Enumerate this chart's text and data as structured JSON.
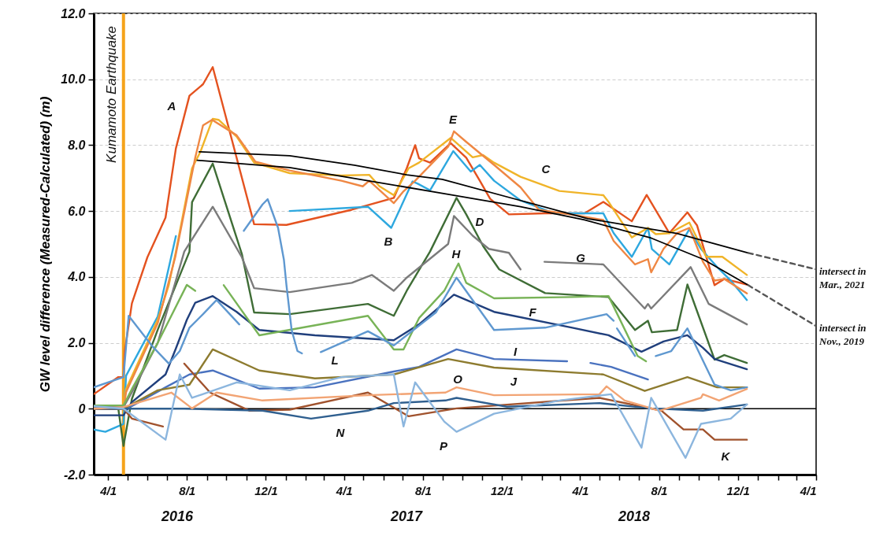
{
  "chart_data": {
    "type": "line",
    "ylabel": "GW level difference (Measured-Calculated) (m)",
    "xlim": [
      "2016-03-10",
      "2019-04-01"
    ],
    "ylim": [
      -2,
      12
    ],
    "yticks": [
      {
        "value": -2,
        "label": "-2.0"
      },
      0,
      {
        "value": 2,
        "label": "2.0"
      },
      {
        "value": 4,
        "label": "4.0"
      },
      {
        "value": 6,
        "label": "6.0"
      },
      {
        "value": 8,
        "label": "8.0"
      },
      {
        "value": 10,
        "label": "10.0"
      },
      {
        "value": 12,
        "label": "12.0"
      }
    ],
    "xticks": [
      {
        "value": "2016-04-01",
        "label": "4/1"
      },
      {
        "value": "2016-05-01",
        "label": null
      },
      {
        "value": "2016-06-01",
        "label": null
      },
      {
        "value": "2016-07-01",
        "label": null
      },
      {
        "value": "2016-08-01",
        "label": "8/1"
      },
      {
        "value": "2016-09-01",
        "label": null
      },
      {
        "value": "2016-10-01",
        "label": null
      },
      {
        "value": "2016-11-01",
        "label": null
      },
      {
        "value": "2016-12-01",
        "label": "12/1"
      },
      {
        "value": "2017-01-01",
        "label": null
      },
      {
        "value": "2017-02-01",
        "label": null
      },
      {
        "value": "2017-03-01",
        "label": null
      },
      {
        "value": "2017-04-01",
        "label": "4/1"
      },
      {
        "value": "2017-05-01",
        "label": null
      },
      {
        "value": "2017-06-01",
        "label": null
      },
      {
        "value": "2017-07-01",
        "label": null
      },
      {
        "value": "2017-08-01",
        "label": "8/1"
      },
      {
        "value": "2017-09-01",
        "label": null
      },
      {
        "value": "2017-10-01",
        "label": null
      },
      {
        "value": "2017-11-01",
        "label": null
      },
      {
        "value": "2017-12-01",
        "label": "12/1"
      },
      {
        "value": "2018-01-01",
        "label": null
      },
      {
        "value": "2018-02-01",
        "label": null
      },
      {
        "value": "2018-03-01",
        "label": null
      },
      {
        "value": "2018-04-01",
        "label": "4/1"
      },
      {
        "value": "2018-05-01",
        "label": null
      },
      {
        "value": "2018-06-01",
        "label": null
      },
      {
        "value": "2018-07-01",
        "label": null
      },
      {
        "value": "2018-08-01",
        "label": "8/1"
      },
      {
        "value": "2018-09-01",
        "label": null
      },
      {
        "value": "2018-10-01",
        "label": null
      },
      {
        "value": "2018-11-01",
        "label": null
      },
      {
        "value": "2018-12-01",
        "label": "12/1"
      },
      {
        "value": "2019-01-01",
        "label": null
      },
      {
        "value": "2019-02-01",
        "label": null
      },
      {
        "value": "2019-03-01",
        "label": null
      },
      {
        "value": "2019-04-01",
        "label": "4/1"
      }
    ],
    "grid": "y",
    "ref_lines": [
      {
        "axis": "y",
        "value": 0,
        "color": "#000000"
      },
      {
        "axis": "x",
        "value": "2016-04-25",
        "label": "Kumamoto Earthquake",
        "color": "#f5a31a"
      }
    ],
    "series": [
      {
        "color": "#e4521f",
        "x": [
          "2016-03-10",
          "2016-04-17",
          "2016-04-25",
          "2016-04-27",
          "2016-05-08",
          "2016-06-01",
          "2016-06-29",
          "2016-07-15",
          "2016-08-05",
          "2016-08-26",
          "2016-09-10",
          "2016-11-13",
          "2017-01-02",
          "2017-04-13",
          "2017-06-17",
          "2017-07-07",
          "2017-07-20",
          "2017-07-26",
          "2017-08-12",
          "2017-09-13",
          "2017-10-07",
          "2017-10-28",
          "2017-11-13",
          "2017-12-12",
          "2018-02-06",
          "2018-04-08",
          "2018-05-07",
          "2018-06-20",
          "2018-07-13",
          "2018-08-17",
          "2018-09-14",
          "2018-09-29",
          "2018-10-26",
          "2018-11-10",
          "2018-12-15"
        ],
        "values": [
          0.44,
          0.96,
          0.96,
          1.75,
          3.2,
          4.6,
          5.8,
          7.9,
          9.5,
          9.85,
          10.37,
          5.6,
          5.58,
          6.04,
          6.4,
          7.3,
          8.0,
          7.6,
          7.47,
          8.06,
          7.62,
          6.92,
          6.37,
          5.9,
          5.93,
          5.93,
          6.28,
          5.69,
          6.49,
          5.33,
          5.96,
          5.56,
          3.75,
          3.94,
          3.77
        ]
      },
      {
        "color": "#2ea8df",
        "x": [
          "2016-03-10",
          "2016-03-28",
          "2016-04-25",
          "2016-04-29",
          "2016-06-17",
          "2016-07-15",
          "2016-08-09",
          "2016-10-17",
          "2017-01-07",
          "2017-05-08",
          "2017-06-13",
          "2017-06-26",
          "2017-07-16",
          "2017-07-24",
          "2017-08-12",
          "2017-09-17",
          "2017-10-14",
          "2017-10-28",
          "2017-11-19",
          "2017-12-30",
          "2018-02-20",
          "2018-05-07",
          "2018-05-23",
          "2018-06-20",
          "2018-07-15",
          "2018-07-21",
          "2018-08-17",
          "2018-09-17",
          "2018-10-05",
          "2018-10-30",
          "2018-11-20",
          "2018-12-15"
        ],
        "values": [
          -0.63,
          -0.7,
          -0.46,
          1.0,
          2.8,
          5.24,
          null,
          null,
          6.0,
          6.13,
          5.49,
          6.04,
          6.9,
          6.83,
          6.63,
          7.82,
          7.2,
          7.4,
          6.92,
          6.32,
          5.93,
          5.93,
          5.33,
          4.61,
          5.49,
          4.85,
          4.38,
          5.45,
          4.85,
          4.3,
          3.89,
          3.3
        ]
      },
      {
        "color": "#f0b429",
        "x": [
          "2016-03-10",
          "2016-04-25",
          "2016-04-29",
          "2016-06-17",
          "2016-07-04",
          "2016-07-15",
          "2016-08-09",
          "2016-08-22",
          "2016-09-10",
          "2016-09-19",
          "2016-10-17",
          "2016-11-13",
          "2017-01-07",
          "2017-03-28",
          "2017-05-10",
          "2017-05-26",
          "2017-06-17",
          "2017-07-10",
          "2017-07-26",
          "2017-09-13",
          "2017-10-17",
          "2017-11-02",
          "2017-11-19",
          "2017-12-30",
          "2018-02-28",
          "2018-05-07",
          "2018-05-15",
          "2018-06-20",
          "2018-07-15",
          "2018-07-27",
          "2018-08-17",
          "2018-09-17",
          "2018-10-13",
          "2018-11-07",
          "2018-12-15"
        ],
        "values": [
          0.1,
          0.1,
          0.6,
          2.7,
          3.75,
          4.77,
          7.3,
          7.8,
          8.8,
          8.77,
          8.26,
          7.47,
          7.15,
          7.08,
          7.1,
          6.75,
          6.48,
          7.3,
          7.47,
          8.22,
          7.63,
          7.7,
          7.47,
          7.04,
          6.61,
          6.48,
          6.28,
          5.2,
          5.49,
          5.3,
          5.33,
          5.65,
          4.61,
          4.61,
          4.06
        ]
      },
      {
        "color": "#3f6d36",
        "x": [
          "2016-03-10",
          "2016-04-17",
          "2016-04-25",
          "2016-05-08",
          "2016-06-17",
          "2016-08-05",
          "2016-08-09",
          "2016-09-10",
          "2016-10-25",
          "2016-11-13",
          "2017-01-07",
          "2017-05-08",
          "2017-06-17",
          "2017-07-07",
          "2017-08-12",
          "2017-09-22",
          "2017-10-07",
          "2017-11-02",
          "2017-11-27",
          "2018-02-06",
          "2018-05-15",
          "2018-06-25",
          "2018-07-15",
          "2018-07-21",
          "2018-08-29",
          "2018-09-14",
          "2018-10-26",
          "2018-11-10",
          "2018-12-15"
        ],
        "values": [
          0.0,
          0.0,
          -1.13,
          0.3,
          2.4,
          4.77,
          6.27,
          7.44,
          4.7,
          2.92,
          2.87,
          3.18,
          2.82,
          3.58,
          4.77,
          6.4,
          5.9,
          4.94,
          4.23,
          3.51,
          3.39,
          2.39,
          2.67,
          2.32,
          2.39,
          3.77,
          1.49,
          1.63,
          1.39
        ]
      },
      {
        "color": "#ef8743",
        "x": [
          "2016-03-10",
          "2016-04-25",
          "2016-04-29",
          "2016-06-17",
          "2016-07-14",
          "2016-08-14",
          "2016-08-26",
          "2016-09-09",
          "2016-10-17",
          "2016-11-15",
          "2017-01-07",
          "2017-03-28",
          "2017-04-30",
          "2017-05-10",
          "2017-06-17",
          "2017-07-02",
          "2017-07-20",
          "2017-09-09",
          "2017-09-18",
          "2017-10-07",
          "2017-11-19",
          "2017-12-30",
          "2018-01-27",
          "2018-03-20",
          "2018-05-07",
          "2018-05-23",
          "2018-06-25",
          "2018-07-15",
          "2018-07-20",
          "2018-08-08",
          "2018-08-29",
          "2018-09-17",
          "2018-10-08",
          "2018-10-26",
          "2018-11-10",
          "2018-12-15"
        ],
        "values": [
          0.0,
          0.0,
          0.5,
          2.6,
          4.6,
          7.63,
          8.6,
          8.77,
          8.3,
          7.5,
          7.23,
          6.92,
          6.75,
          6.92,
          6.24,
          6.6,
          6.92,
          7.95,
          8.42,
          8.1,
          7.4,
          6.72,
          6.04,
          5.89,
          5.73,
          5.09,
          4.38,
          4.54,
          4.14,
          4.85,
          5.33,
          5.49,
          4.46,
          3.89,
          3.94,
          3.5
        ]
      },
      {
        "color": "#203f7c",
        "x": [
          "2016-03-10",
          "2016-04-25",
          "2016-05-08",
          "2016-06-29",
          "2016-07-15",
          "2016-08-01",
          "2016-08-14",
          "2016-09-10",
          "2016-10-17",
          "2016-11-21",
          "2017-02-15",
          "2017-06-17",
          "2017-07-26",
          "2017-09-18",
          "2017-11-19",
          "2018-03-20",
          "2018-05-15",
          "2018-07-05",
          "2018-08-08",
          "2018-09-14",
          "2018-10-08",
          "2018-10-26",
          "2018-12-15"
        ],
        "values": [
          -0.2,
          -0.2,
          0.2,
          1.04,
          1.83,
          2.7,
          3.22,
          3.42,
          2.94,
          2.39,
          2.23,
          2.08,
          2.56,
          3.46,
          2.94,
          2.46,
          2.23,
          1.73,
          2.04,
          2.23,
          1.85,
          1.51,
          1.2
        ]
      },
      {
        "color": "#7b7b7b",
        "x": [
          "2016-03-10",
          "2016-04-25",
          "2016-05-08",
          "2016-06-17",
          "2016-07-28",
          "2016-09-10",
          "2016-10-25",
          "2016-11-13",
          "2017-01-07",
          "2017-04-13",
          "2017-05-14",
          "2017-06-17",
          "2017-07-07",
          "2017-09-09",
          "2017-09-18",
          "2017-10-17",
          "2017-11-11",
          "2017-12-12",
          "2017-12-30",
          "2018-01-17",
          "2018-02-05",
          "2018-05-07",
          "2018-07-10",
          "2018-07-15",
          "2018-07-20",
          "2018-09-19",
          "2018-10-17",
          "2018-12-15"
        ],
        "values": [
          0.05,
          0.05,
          0.5,
          2.0,
          4.77,
          6.13,
          4.6,
          3.66,
          3.54,
          3.82,
          4.06,
          3.58,
          3.98,
          5.0,
          5.85,
          5.25,
          4.85,
          4.73,
          4.23,
          null,
          4.46,
          4.38,
          3.04,
          3.18,
          3.04,
          4.3,
          3.18,
          2.56
        ]
      },
      {
        "color": "#78b357",
        "x": [
          "2016-03-10",
          "2016-04-25",
          "2016-05-08",
          "2016-06-17",
          "2016-08-01",
          "2016-08-14",
          "2016-09-06",
          "2016-09-27",
          "2016-11-21",
          "2017-05-08",
          "2017-06-17",
          "2017-07-02",
          "2017-07-26",
          "2017-09-03",
          "2017-09-25",
          "2017-10-07",
          "2017-11-19",
          "2018-03-20",
          "2018-05-15",
          "2018-06-29",
          "2018-07-12"
        ],
        "values": [
          0.1,
          0.1,
          0.6,
          2.0,
          3.76,
          3.58,
          null,
          3.75,
          2.23,
          2.82,
          1.8,
          1.8,
          2.75,
          3.58,
          4.41,
          3.82,
          3.35,
          3.39,
          3.42,
          1.6,
          1.44
        ]
      },
      {
        "color": "#4a72bf",
        "x": [
          "2016-03-10",
          "2016-04-25",
          "2016-05-08",
          "2016-06-29",
          "2016-08-05",
          "2016-09-10",
          "2016-11-21",
          "2017-02-15",
          "2017-06-17",
          "2017-07-26",
          "2017-09-22",
          "2017-11-19",
          "2018-03-12",
          "2018-03-30",
          "2018-04-17",
          "2018-05-19",
          "2018-07-15"
        ],
        "values": [
          0.0,
          0.0,
          0.08,
          0.65,
          1.04,
          1.16,
          0.61,
          0.65,
          1.13,
          1.27,
          1.8,
          1.51,
          1.44,
          null,
          1.39,
          1.27,
          0.89
        ]
      },
      {
        "color": "#8d7b2f",
        "x": [
          "2016-03-10",
          "2016-04-25",
          "2016-06-17",
          "2016-08-05",
          "2016-09-10",
          "2016-11-21",
          "2017-02-15",
          "2017-06-17",
          "2017-09-09",
          "2017-11-19",
          "2018-05-07",
          "2018-07-10",
          "2018-09-14",
          "2018-10-30",
          "2018-12-15"
        ],
        "values": [
          0.0,
          0.0,
          0.56,
          0.73,
          1.8,
          1.16,
          0.92,
          1.04,
          1.51,
          1.25,
          1.04,
          0.54,
          0.96,
          0.65,
          0.65
        ]
      },
      {
        "color": "#a0522d",
        "x": [
          "2016-03-10",
          "2016-04-25",
          "2016-05-08",
          "2016-06-25",
          "2016-07-11",
          "2016-07-28",
          "2016-09-06",
          "2016-11-06",
          "2017-01-07",
          "2017-05-08",
          "2017-07-10",
          "2017-09-22",
          "2018-05-01",
          "2018-08-05",
          "2018-09-08",
          "2018-10-08",
          "2018-10-26",
          "2018-12-15"
        ],
        "values": [
          0.0,
          0.0,
          -0.3,
          -0.54,
          null,
          1.37,
          0.49,
          -0.06,
          -0.03,
          0.49,
          -0.23,
          0.01,
          0.33,
          -0.06,
          -0.63,
          -0.63,
          -0.94,
          -0.94
        ]
      },
      {
        "color": "#5f98d0",
        "x": [
          "2016-03-10",
          "2016-04-25",
          "2016-05-03",
          "2016-05-20",
          "2016-06-08",
          "2016-07-04",
          "2016-07-21",
          "2016-08-05",
          "2016-08-26",
          "2016-09-16",
          "2016-10-21",
          "2016-10-25",
          "2016-10-28",
          "2016-11-26",
          "2016-12-04",
          "2016-12-20",
          "2016-12-29",
          "2017-01-02",
          "2017-01-10",
          "2017-01-19",
          "2017-01-26",
          "2017-02-10",
          "2017-02-24",
          "2017-05-08",
          "2017-06-17",
          "2017-08-21",
          "2017-09-22",
          "2017-11-19",
          "2018-02-06",
          "2018-05-12",
          "2018-05-23",
          "2018-05-26",
          "2018-05-28",
          "2018-06-25",
          "2018-07-12",
          "2018-07-27",
          "2018-08-20",
          "2018-09-14",
          "2018-10-26",
          "2018-11-20",
          "2018-12-15"
        ],
        "values": [
          0.65,
          0.96,
          2.82,
          2.39,
          1.91,
          1.37,
          1.75,
          2.46,
          2.87,
          3.3,
          2.56,
          null,
          5.4,
          6.2,
          6.36,
          5.49,
          4.53,
          3.75,
          2.39,
          1.75,
          1.68,
          null,
          1.72,
          2.35,
          1.92,
          2.92,
          3.98,
          2.39,
          2.46,
          2.87,
          2.67,
          null,
          2.44,
          1.6,
          null,
          1.6,
          1.75,
          2.44,
          0.73,
          0.56,
          0.65
        ]
      },
      {
        "color": "#2f5f8f",
        "x": [
          "2016-03-10",
          "2016-04-25",
          "2016-07-28",
          "2016-11-26",
          "2017-02-09",
          "2017-05-08",
          "2017-06-17",
          "2017-09-05",
          "2017-09-22",
          "2017-12-09",
          "2018-05-01",
          "2018-07-20",
          "2018-10-08",
          "2018-12-15"
        ],
        "values": [
          0.0,
          0.0,
          0.0,
          -0.06,
          -0.3,
          -0.06,
          0.17,
          0.25,
          0.33,
          0.06,
          0.17,
          0.01,
          -0.06,
          0.13
        ]
      },
      {
        "color": "#f2a474",
        "x": [
          "2016-03-10",
          "2016-04-25",
          "2016-07-08",
          "2016-08-09",
          "2016-09-16",
          "2016-11-26",
          "2017-05-08",
          "2017-09-05",
          "2017-09-22",
          "2017-11-19",
          "2018-05-01",
          "2018-05-12",
          "2018-06-09",
          "2018-08-02",
          "2018-10-05",
          "2018-10-08",
          "2018-11-02",
          "2018-12-15"
        ],
        "values": [
          0.0,
          0.05,
          0.49,
          0.01,
          0.49,
          0.25,
          0.41,
          0.49,
          0.65,
          0.41,
          0.44,
          0.68,
          0.25,
          -0.06,
          0.33,
          0.44,
          0.25,
          0.6
        ]
      },
      {
        "color": "#8cb6de",
        "x": [
          "2016-03-10",
          "2016-04-25",
          "2016-06-29",
          "2016-07-21",
          "2016-08-09",
          "2016-10-17",
          "2017-01-07",
          "2017-03-28",
          "2017-06-17",
          "2017-07-02",
          "2017-07-20",
          "2017-09-03",
          "2017-09-22",
          "2017-11-19",
          "2018-02-28",
          "2018-05-19",
          "2018-07-05",
          "2018-07-20",
          "2018-09-11",
          "2018-10-05",
          "2018-11-20",
          "2018-12-15"
        ],
        "values": [
          0.08,
          0.0,
          -0.94,
          1.04,
          0.33,
          0.8,
          0.56,
          0.96,
          1.04,
          -0.54,
          0.8,
          -0.39,
          -0.7,
          -0.15,
          0.25,
          0.44,
          -1.18,
          0.33,
          -1.49,
          -0.46,
          -0.3,
          0.13
        ]
      },
      {
        "color": "#000000",
        "x": [
          "2016-08-20",
          "2017-01-07",
          "2017-04-17",
          "2017-07-07",
          "2017-08-31",
          "2017-12-30",
          "2018-04-13",
          "2018-08-29",
          "2018-12-17"
        ],
        "values": [
          7.8,
          7.68,
          7.39,
          7.1,
          6.96,
          6.32,
          5.77,
          5.32,
          4.73
        ]
      },
      {
        "color": "#555555",
        "line_style": "dashed",
        "x": [
          "2018-12-17",
          "2019-04-01"
        ],
        "values": [
          4.73,
          4.23
        ]
      },
      {
        "color": "#000000",
        "x": [
          "2016-08-17",
          "2017-01-07",
          "2017-05-08",
          "2017-09-09",
          "2017-12-30",
          "2018-04-08",
          "2018-07-20",
          "2018-10-08",
          "2018-12-17"
        ],
        "values": [
          7.54,
          7.32,
          6.92,
          6.51,
          6.13,
          5.73,
          5.18,
          4.54,
          3.75
        ]
      },
      {
        "color": "#555555",
        "line_style": "dashed",
        "x": [
          "2018-12-17",
          "2019-04-01"
        ],
        "values": [
          3.75,
          2.51
        ]
      }
    ],
    "annotations": [
      "A",
      "B",
      "C",
      "D",
      "E",
      "F",
      "G",
      "H",
      "I",
      "J",
      "K",
      "L",
      "N",
      "O",
      "P",
      "intersect in Mar., 2021",
      "intersect in Nov., 2019",
      "2016",
      "2017",
      "2018"
    ]
  }
}
